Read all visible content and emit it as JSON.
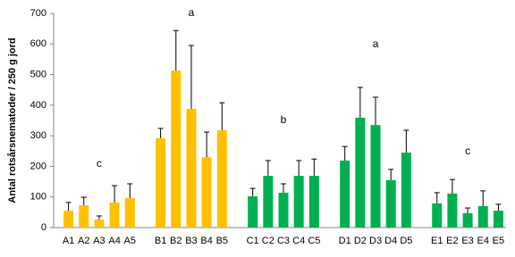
{
  "chart_data": {
    "type": "bar",
    "y_label": "Antal rotsårsnematoder / 250 g jord",
    "categories": [
      "A1",
      "A2",
      "A3",
      "A4",
      "A5",
      null,
      "B1",
      "B2",
      "B3",
      "B4",
      "B5",
      null,
      "C1",
      "C2",
      "C3",
      "C4",
      "C5",
      null,
      "D1",
      "D2",
      "D3",
      "D4",
      "D5",
      null,
      "E1",
      "E2",
      "E3",
      "E4",
      "E5"
    ],
    "values": [
      55,
      73,
      26,
      82,
      96,
      null,
      292,
      513,
      388,
      230,
      318,
      null,
      102,
      169,
      114,
      169,
      169,
      null,
      219,
      359,
      335,
      155,
      245,
      null,
      79,
      111,
      47,
      70,
      55
    ],
    "errors": [
      27,
      26,
      12,
      55,
      47,
      null,
      32,
      131,
      207,
      82,
      90,
      null,
      26,
      50,
      29,
      50,
      55,
      null,
      46,
      99,
      91,
      35,
      73,
      null,
      35,
      46,
      17,
      50,
      21
    ],
    "colors": [
      "#ffc000",
      "#ffc000",
      "#ffc000",
      "#ffc000",
      "#ffc000",
      null,
      "#ffc000",
      "#ffc000",
      "#ffc000",
      "#ffc000",
      "#ffc000",
      null,
      "#00b050",
      "#00b050",
      "#00b050",
      "#00b050",
      "#00b050",
      null,
      "#00b050",
      "#00b050",
      "#00b050",
      "#00b050",
      "#00b050",
      null,
      "#00b050",
      "#00b050",
      "#00b050",
      "#00b050",
      "#00b050"
    ],
    "annotations": [
      "c",
      "a",
      "b",
      "a",
      "c"
    ],
    "ylim": [
      0,
      700
    ],
    "yticks": [
      0,
      100,
      200,
      300,
      400,
      500,
      600,
      700
    ],
    "grid": false
  }
}
